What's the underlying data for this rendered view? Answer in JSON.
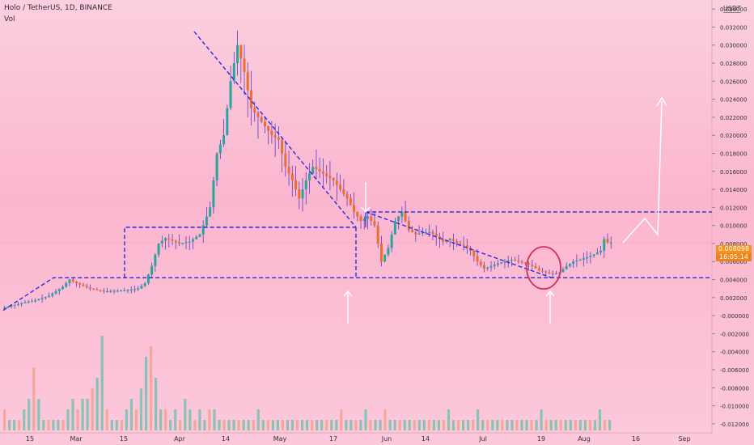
{
  "header": {
    "title": "Holo / TetherUS, 1D, BINANCE",
    "volume_label": "Vol"
  },
  "price_scale": {
    "unit": "USDT",
    "current_price": "0.008098",
    "countdown": "16:05:14"
  },
  "colors": {
    "up": "#26a69a",
    "down": "#ef6c2a",
    "pattern": "#2b2bd8",
    "arrow": "#ffffff",
    "circle": "#d32f5f",
    "axis_text": "#333333"
  },
  "chart_data": {
    "type": "candlestick",
    "symbol": "HOTUSDT",
    "interval": "1D",
    "ylim": [
      -0.013,
      0.035
    ],
    "y_ticks": [
      "0.034000",
      "0.032000",
      "0.030000",
      "0.028000",
      "0.026000",
      "0.024000",
      "0.022000",
      "0.020000",
      "0.018000",
      "0.016000",
      "0.014000",
      "0.012000",
      "0.010000",
      "0.008000",
      "0.006000",
      "0.004000",
      "0.002000",
      "-0.000000",
      "-0.002000",
      "-0.004000",
      "-0.006000",
      "-0.008000",
      "-0.010000",
      "-0.012000"
    ],
    "x_ticks": [
      "15",
      "Mar",
      "15",
      "Apr",
      "14",
      "May",
      "17",
      "Jun",
      "14",
      "Jul",
      "19",
      "Aug",
      "16",
      "Sep"
    ],
    "price_path": [
      [
        0,
        0.0008
      ],
      [
        5,
        0.0013
      ],
      [
        10,
        0.0017
      ],
      [
        14,
        0.0022
      ],
      [
        18,
        0.0032
      ],
      [
        20,
        0.004
      ],
      [
        22,
        0.0036
      ],
      [
        26,
        0.003
      ],
      [
        30,
        0.0027
      ],
      [
        36,
        0.0028
      ],
      [
        40,
        0.003
      ],
      [
        42,
        0.0036
      ],
      [
        44,
        0.0055
      ],
      [
        46,
        0.008
      ],
      [
        48,
        0.0086
      ],
      [
        52,
        0.008
      ],
      [
        55,
        0.0082
      ],
      [
        58,
        0.009
      ],
      [
        61,
        0.012
      ],
      [
        63,
        0.018
      ],
      [
        65,
        0.02
      ],
      [
        67,
        0.026
      ],
      [
        69,
        0.03
      ],
      [
        71,
        0.027
      ],
      [
        73,
        0.023
      ],
      [
        75,
        0.022
      ],
      [
        77,
        0.021
      ],
      [
        79,
        0.02
      ],
      [
        81,
        0.0195
      ],
      [
        83,
        0.0165
      ],
      [
        85,
        0.015
      ],
      [
        87,
        0.013
      ],
      [
        89,
        0.015
      ],
      [
        91,
        0.0165
      ],
      [
        93,
        0.016
      ],
      [
        95,
        0.0155
      ],
      [
        97,
        0.015
      ],
      [
        99,
        0.014
      ],
      [
        101,
        0.013
      ],
      [
        103,
        0.0115
      ],
      [
        105,
        0.0105
      ],
      [
        107,
        0.011
      ],
      [
        109,
        0.01
      ],
      [
        111,
        0.006
      ],
      [
        113,
        0.0075
      ],
      [
        115,
        0.0105
      ],
      [
        117,
        0.0115
      ],
      [
        119,
        0.0095
      ],
      [
        121,
        0.009
      ],
      [
        123,
        0.0092
      ],
      [
        125,
        0.0093
      ],
      [
        127,
        0.0088
      ],
      [
        129,
        0.0082
      ],
      [
        131,
        0.0085
      ],
      [
        133,
        0.008
      ],
      [
        135,
        0.0078
      ],
      [
        137,
        0.0072
      ],
      [
        139,
        0.006
      ],
      [
        141,
        0.0052
      ],
      [
        143,
        0.0055
      ],
      [
        145,
        0.0058
      ],
      [
        147,
        0.006
      ],
      [
        149,
        0.0062
      ],
      [
        151,
        0.006
      ],
      [
        153,
        0.0058
      ],
      [
        155,
        0.0055
      ],
      [
        157,
        0.005
      ],
      [
        159,
        0.0048
      ],
      [
        161,
        0.0046
      ],
      [
        163,
        0.0048
      ],
      [
        165,
        0.0055
      ],
      [
        167,
        0.006
      ],
      [
        169,
        0.0062
      ],
      [
        171,
        0.0065
      ],
      [
        173,
        0.0068
      ],
      [
        175,
        0.0072
      ],
      [
        176,
        0.0085
      ],
      [
        177,
        0.0081
      ]
    ],
    "volume": [
      2,
      1,
      1,
      1,
      2,
      3,
      6,
      3,
      1,
      1,
      1,
      1,
      1,
      2,
      3,
      2,
      3,
      3,
      4,
      5,
      9,
      2,
      1,
      1,
      1,
      2,
      3,
      2,
      4,
      7,
      8,
      5,
      2,
      2,
      1,
      2,
      1,
      3,
      2,
      1,
      2,
      1,
      2,
      2,
      1,
      1,
      1,
      1,
      1,
      1,
      1,
      1,
      2,
      1,
      1,
      1,
      1,
      1,
      1,
      1,
      1,
      1,
      1,
      1,
      1,
      1,
      1,
      1,
      1,
      2,
      1,
      1,
      1,
      1,
      2,
      1,
      1,
      1,
      2,
      1,
      1,
      1,
      1,
      1,
      1,
      1,
      1,
      1,
      1,
      1,
      1,
      2,
      1,
      1,
      1,
      1,
      1,
      2,
      1,
      1,
      1,
      1,
      1,
      1,
      1,
      1,
      1,
      1,
      1,
      1,
      2,
      1,
      1,
      1,
      1,
      1,
      1,
      1,
      1,
      1,
      1,
      1,
      2,
      1,
      1
    ],
    "annotations": {
      "horizontal_levels": [
        0.0042,
        0.0098,
        0.0115
      ],
      "triangle_apex": 0.0315,
      "projection_target": 0.0256
    }
  }
}
